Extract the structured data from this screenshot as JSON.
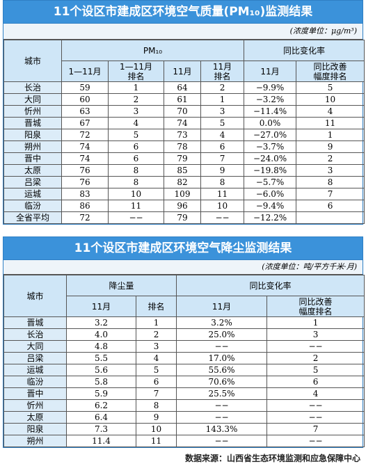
{
  "tables": [
    {
      "title": "11个设区市建成区环境空气质量(PM₁₀)监测结果",
      "unit": "(浓度单位：μg/m³)",
      "header_top": [
        "城市",
        "PM₁₀",
        "同比变化率"
      ],
      "header_sub": [
        "1—11月",
        "1—11月\n排名",
        "11月",
        "11月\n排名",
        "11月",
        "同比改善\n幅度排名"
      ],
      "rows": [
        [
          "长治",
          "59",
          "1",
          "64",
          "2",
          "−9.9%",
          "5"
        ],
        [
          "大同",
          "60",
          "2",
          "61",
          "1",
          "−3.2%",
          "10"
        ],
        [
          "忻州",
          "63",
          "3",
          "70",
          "3",
          "−11.4%",
          "4"
        ],
        [
          "晋城",
          "67",
          "4",
          "74",
          "5",
          "0.0%",
          "11"
        ],
        [
          "阳泉",
          "72",
          "5",
          "73",
          "4",
          "−27.0%",
          "1"
        ],
        [
          "朔州",
          "74",
          "6",
          "78",
          "6",
          "−3.7%",
          "9"
        ],
        [
          "晋中",
          "74",
          "6",
          "79",
          "7",
          "−24.0%",
          "2"
        ],
        [
          "太原",
          "76",
          "8",
          "85",
          "9",
          "−19.8%",
          "3"
        ],
        [
          "吕梁",
          "76",
          "8",
          "82",
          "8",
          "−5.7%",
          "8"
        ],
        [
          "运城",
          "83",
          "10",
          "109",
          "11",
          "−6.0%",
          "7"
        ],
        [
          "临汾",
          "86",
          "11",
          "96",
          "10",
          "−9.4%",
          "6"
        ],
        [
          "全省平均",
          "72",
          "−−",
          "79",
          "−−",
          "−12.2%"
        ]
      ]
    },
    {
      "title": "11个设区市建成区环境空气降尘监测结果",
      "unit": "(浓度单位：吨/平方千米·月)",
      "header_top": [
        "城市",
        "降尘量",
        "同比变化率"
      ],
      "header_sub": [
        "11月",
        "排名",
        "11月",
        "同比改善\n幅度排名"
      ],
      "rows": [
        [
          "晋城",
          "3.2",
          "1",
          "3.2%",
          "1"
        ],
        [
          "长治",
          "4.0",
          "2",
          "25.0%",
          "3"
        ],
        [
          "大同",
          "4.8",
          "3",
          "−−",
          "−−"
        ],
        [
          "吕梁",
          "5.5",
          "4",
          "17.0%",
          "2"
        ],
        [
          "运城",
          "5.6",
          "5",
          "55.6%",
          "5"
        ],
        [
          "临汾",
          "5.8",
          "6",
          "70.6%",
          "6"
        ],
        [
          "晋中",
          "5.9",
          "7",
          "25.5%",
          "4"
        ],
        [
          "忻州",
          "6.2",
          "8",
          "−−",
          "−−"
        ],
        [
          "太原",
          "6.4",
          "9",
          "−−",
          "−−"
        ],
        [
          "阳泉",
          "7.3",
          "10",
          "143.3%",
          "7"
        ],
        [
          "朔州",
          "11.4",
          "11",
          "−−",
          "−−"
        ]
      ]
    }
  ],
  "footer": "数据来源：山西省生态环境监测和应急保障中心"
}
